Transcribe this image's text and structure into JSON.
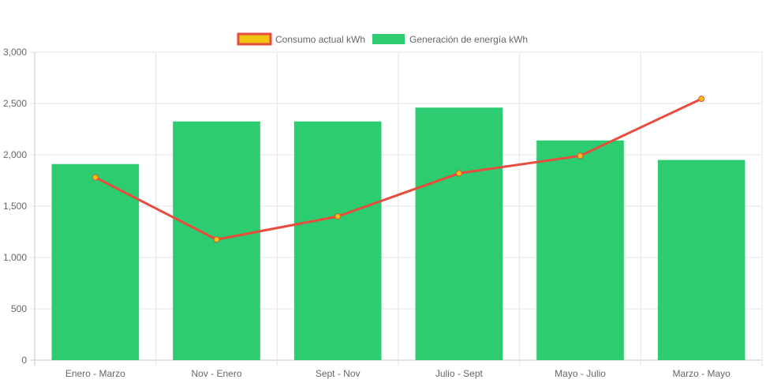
{
  "chart_data": {
    "type": "bar",
    "categories": [
      "Enero - Marzo",
      "Nov - Enero",
      "Sept - Nov",
      "Julio - Sept",
      "Mayo - Julio",
      "Marzo - Mayo"
    ],
    "series": [
      {
        "name": "Consumo actual kWh",
        "type": "line",
        "values": [
          1780,
          1175,
          1400,
          1820,
          1990,
          2545
        ],
        "color": "#e74c3c",
        "point_color": "#f1c40f"
      },
      {
        "name": "Generación de energía kWh",
        "type": "bar",
        "values": [
          1910,
          2325,
          2325,
          2460,
          2140,
          1950
        ],
        "color": "#2ecc71"
      }
    ],
    "ylim": [
      0,
      3000
    ],
    "yticks": [
      0,
      500,
      1000,
      1500,
      2000,
      2500,
      3000
    ],
    "ytick_labels": [
      "0",
      "500",
      "1,000",
      "1,500",
      "2,000",
      "2,500",
      "3,000"
    ],
    "grid": true,
    "legend_position": "top-center"
  }
}
